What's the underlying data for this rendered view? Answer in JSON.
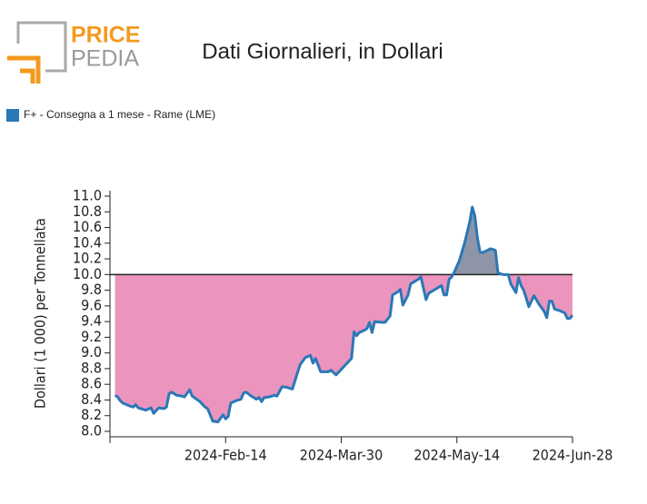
{
  "logo": {
    "word1": "PRICE",
    "word2": "PEDIA"
  },
  "chart_data": {
    "type": "line",
    "title": "Dati Giornalieri, in Dollari",
    "ylabel": "Dollari (1 000) per Tonnellata",
    "baseline": 10,
    "above_color": "#8d95a7",
    "below_color": "#ea94be",
    "xlim": [
      "2023-12-31",
      "2024-06-28"
    ],
    "xticks": [
      "2024-Feb-14",
      "2024-Mar-30",
      "2024-May-14",
      "2024-Jun-28"
    ],
    "ylim": [
      8,
      11
    ],
    "yticks": [
      {
        "value": 8,
        "label": "8.0"
      },
      {
        "value": 8.2,
        "label": "8.2"
      },
      {
        "value": 8.4,
        "label": "8.4"
      },
      {
        "value": 8.6,
        "label": "8.6"
      },
      {
        "value": 8.8,
        "label": "8.8"
      },
      {
        "value": 9,
        "label": "9.0"
      },
      {
        "value": 9.2,
        "label": "9.2"
      },
      {
        "value": 9.4,
        "label": "9.4"
      },
      {
        "value": 9.6,
        "label": "9.6"
      },
      {
        "value": 9.8,
        "label": "9.8"
      },
      {
        "value": 10,
        "label": "10.0"
      },
      {
        "value": 10.2,
        "label": "10.2"
      },
      {
        "value": 10.4,
        "label": "10.4"
      },
      {
        "value": 10.6,
        "label": "10.6"
      },
      {
        "value": 10.8,
        "label": "10.8"
      },
      {
        "value": 11,
        "label": "11.0"
      }
    ],
    "x": [
      "2024-01-02",
      "2024-01-03",
      "2024-01-04",
      "2024-01-05",
      "2024-01-08",
      "2024-01-09",
      "2024-01-10",
      "2024-01-11",
      "2024-01-14",
      "2024-01-16",
      "2024-01-17",
      "2024-01-19",
      "2024-01-21",
      "2024-01-22",
      "2024-01-23",
      "2024-01-24",
      "2024-01-26",
      "2024-01-28",
      "2024-01-29",
      "2024-01-31",
      "2024-02-01",
      "2024-02-04",
      "2024-02-06",
      "2024-02-07",
      "2024-02-09",
      "2024-02-11",
      "2024-02-13",
      "2024-02-14",
      "2024-02-15",
      "2024-02-16",
      "2024-02-18",
      "2024-02-20",
      "2024-02-21",
      "2024-02-22",
      "2024-02-24",
      "2024-02-26",
      "2024-02-27",
      "2024-02-28",
      "2024-02-29",
      "2024-03-02",
      "2024-03-04",
      "2024-03-05",
      "2024-03-07",
      "2024-03-09",
      "2024-03-11",
      "2024-03-13",
      "2024-03-14",
      "2024-03-16",
      "2024-03-18",
      "2024-03-19",
      "2024-03-20",
      "2024-03-22",
      "2024-03-25",
      "2024-03-26",
      "2024-03-28",
      "2024-03-30",
      "2024-04-01",
      "2024-04-03",
      "2024-04-04",
      "2024-04-05",
      "2024-04-06",
      "2024-04-08",
      "2024-04-09",
      "2024-04-10",
      "2024-04-11",
      "2024-04-12",
      "2024-04-15",
      "2024-04-16",
      "2024-04-18",
      "2024-04-19",
      "2024-04-21",
      "2024-04-22",
      "2024-04-23",
      "2024-04-25",
      "2024-04-26",
      "2024-04-29",
      "2024-04-30",
      "2024-05-02",
      "2024-05-03",
      "2024-05-05",
      "2024-05-08",
      "2024-05-09",
      "2024-05-10",
      "2024-05-11",
      "2024-05-12",
      "2024-05-13",
      "2024-05-15",
      "2024-05-17",
      "2024-05-19",
      "2024-05-20",
      "2024-05-21",
      "2024-05-22",
      "2024-05-23",
      "2024-05-24",
      "2024-05-26",
      "2024-05-27",
      "2024-05-29",
      "2024-05-30",
      "2024-06-01",
      "2024-06-03",
      "2024-06-04",
      "2024-06-06",
      "2024-06-07",
      "2024-06-08",
      "2024-06-09",
      "2024-06-10",
      "2024-06-11",
      "2024-06-13",
      "2024-06-15",
      "2024-06-17",
      "2024-06-18",
      "2024-06-19",
      "2024-06-20",
      "2024-06-21",
      "2024-06-23",
      "2024-06-25",
      "2024-06-26",
      "2024-06-27",
      "2024-06-28"
    ],
    "series": [
      {
        "name": "F+ - Consegna a 1 mese - Rame (LME)",
        "color": "#2a78b6",
        "values": [
          8.46,
          8.44,
          8.39,
          8.36,
          8.32,
          8.31,
          8.34,
          8.3,
          8.27,
          8.3,
          8.23,
          8.3,
          8.29,
          8.31,
          8.48,
          8.5,
          8.46,
          8.45,
          8.44,
          8.53,
          8.45,
          8.38,
          8.31,
          8.29,
          8.13,
          8.12,
          8.21,
          8.16,
          8.19,
          8.36,
          8.39,
          8.41,
          8.49,
          8.5,
          8.45,
          8.41,
          8.43,
          8.38,
          8.43,
          8.44,
          8.46,
          8.45,
          8.57,
          8.56,
          8.54,
          8.75,
          8.85,
          8.94,
          8.97,
          8.87,
          8.93,
          8.76,
          8.76,
          8.78,
          8.72,
          8.79,
          8.86,
          8.93,
          9.27,
          9.22,
          9.26,
          9.29,
          9.31,
          9.39,
          9.26,
          9.4,
          9.39,
          9.39,
          9.47,
          9.74,
          9.78,
          9.81,
          9.61,
          9.74,
          9.88,
          9.94,
          9.97,
          9.68,
          9.76,
          9.8,
          9.86,
          9.74,
          9.74,
          9.94,
          9.97,
          10.03,
          10.18,
          10.4,
          10.67,
          10.86,
          10.75,
          10.47,
          10.29,
          10.28,
          10.31,
          10.33,
          10.31,
          10.02,
          10.0,
          10.0,
          9.88,
          9.77,
          9.96,
          9.86,
          9.8,
          9.7,
          9.59,
          9.73,
          9.62,
          9.53,
          9.45,
          9.66,
          9.66,
          9.56,
          9.54,
          9.51,
          9.44,
          9.44,
          9.48
        ]
      }
    ]
  }
}
